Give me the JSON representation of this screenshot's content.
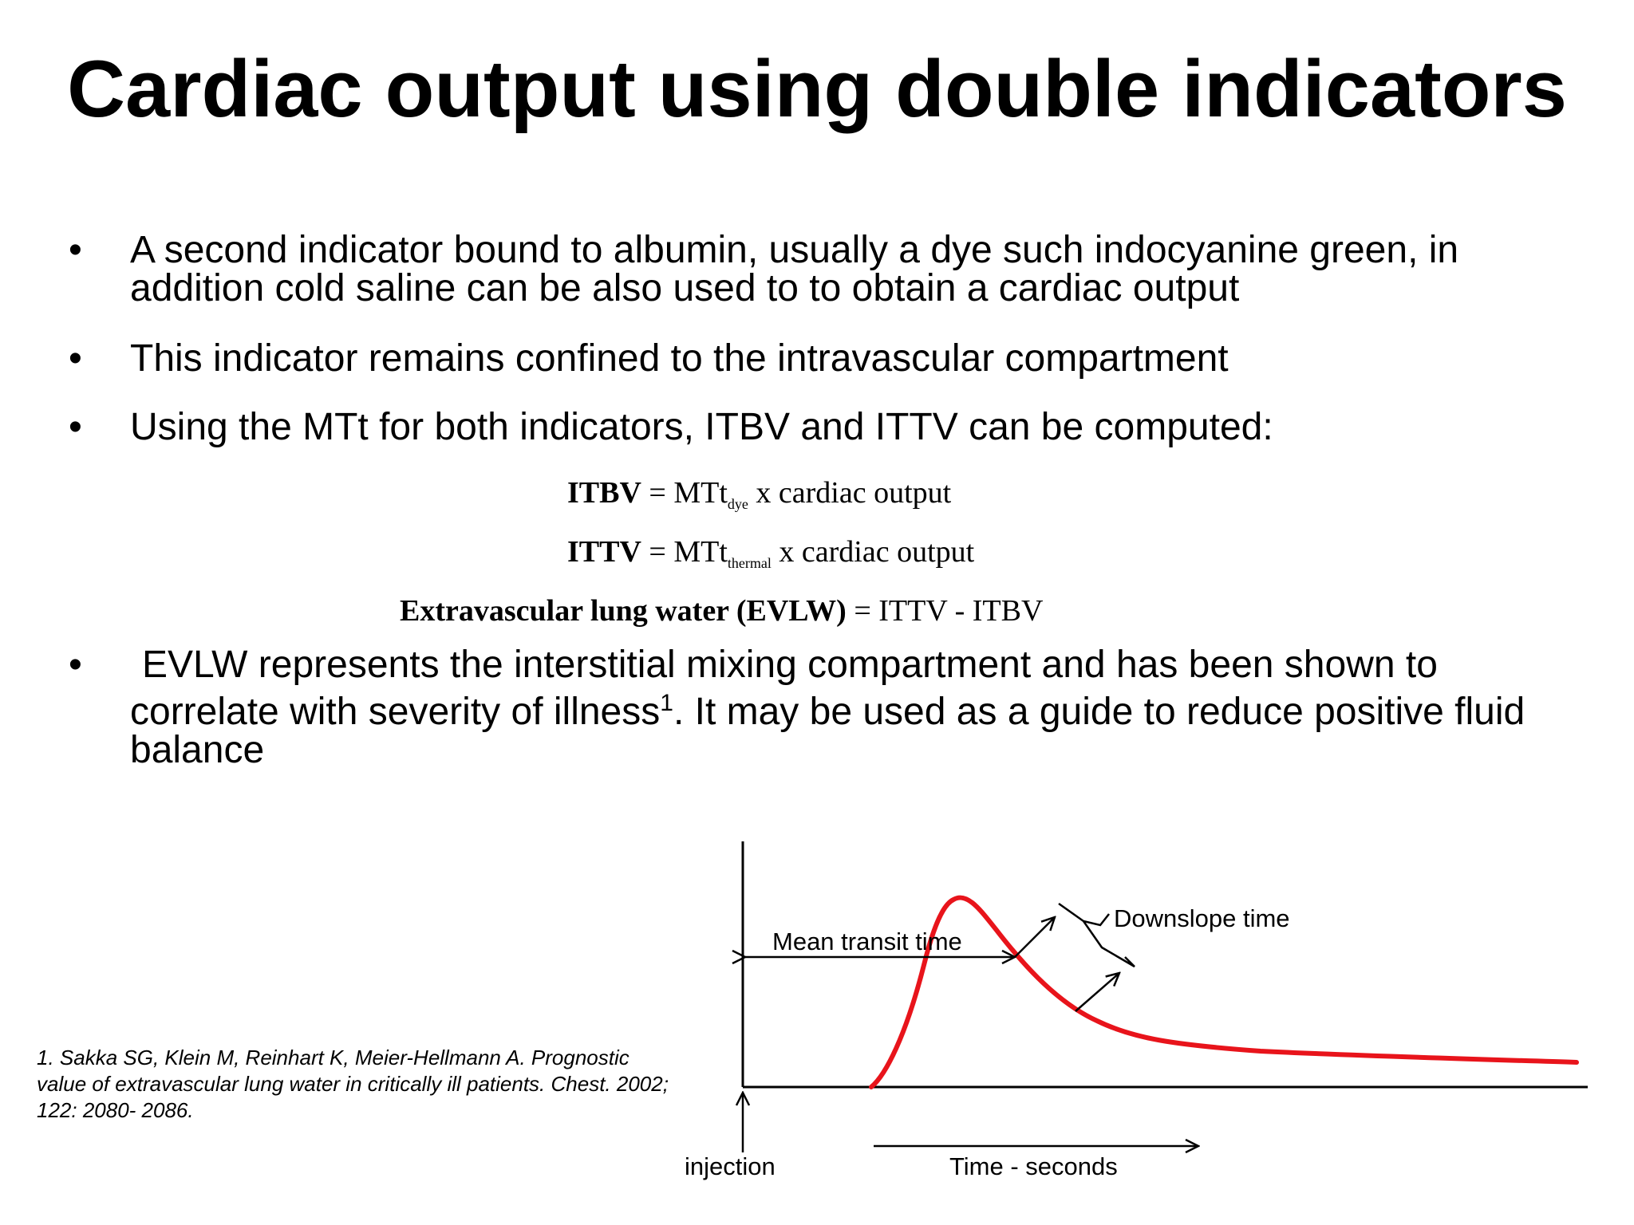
{
  "title": "Cardiac output using double indicators",
  "bullets": [
    {
      "dot": "•",
      "text": "A second indicator bound to albumin, usually a dye such indocyanine green, in addition cold saline can be also used to  to obtain a cardiac output"
    },
    {
      "dot": "•",
      "text": "This indicator remains confined to the intravascular compartment"
    },
    {
      "dot": "•",
      "text": "Using the MTt for both indicators, ITBV and ITTV can be computed:"
    },
    {
      "dot": "•",
      "lead": "EVLW represents the interstitial mixing compartment and has been shown to correlate with severity of illness",
      "sup": "1",
      "tail": ".  It may be used as a guide to reduce positive fluid balance"
    }
  ],
  "equations": [
    {
      "lhs": "ITBV",
      "eq": " = ",
      "base": "MTt",
      "sub": "dye",
      "rhs": " x cardiac output"
    },
    {
      "lhs": "ITTV",
      "eq": " = ",
      "base": "MTt",
      "sub": "thermal",
      "rhs": " x cardiac output"
    },
    {
      "lhs": "Extravascular lung water (EVLW)",
      "eq": " = ",
      "rhs": "ITTV - ITBV"
    }
  ],
  "reference": "1. Sakka SG, Klein M, Reinhart K, Meier-Hellmann A. Prognostic value of extravascular lung water in critically ill patients. Chest. 2002; 122: 2080- 2086.",
  "diagram": {
    "mean_transit_label": "Mean transit time",
    "downslope_label": "Downslope time",
    "injection_label": "injection",
    "time_label": "Time - seconds",
    "curve_color": "#e8141b"
  }
}
